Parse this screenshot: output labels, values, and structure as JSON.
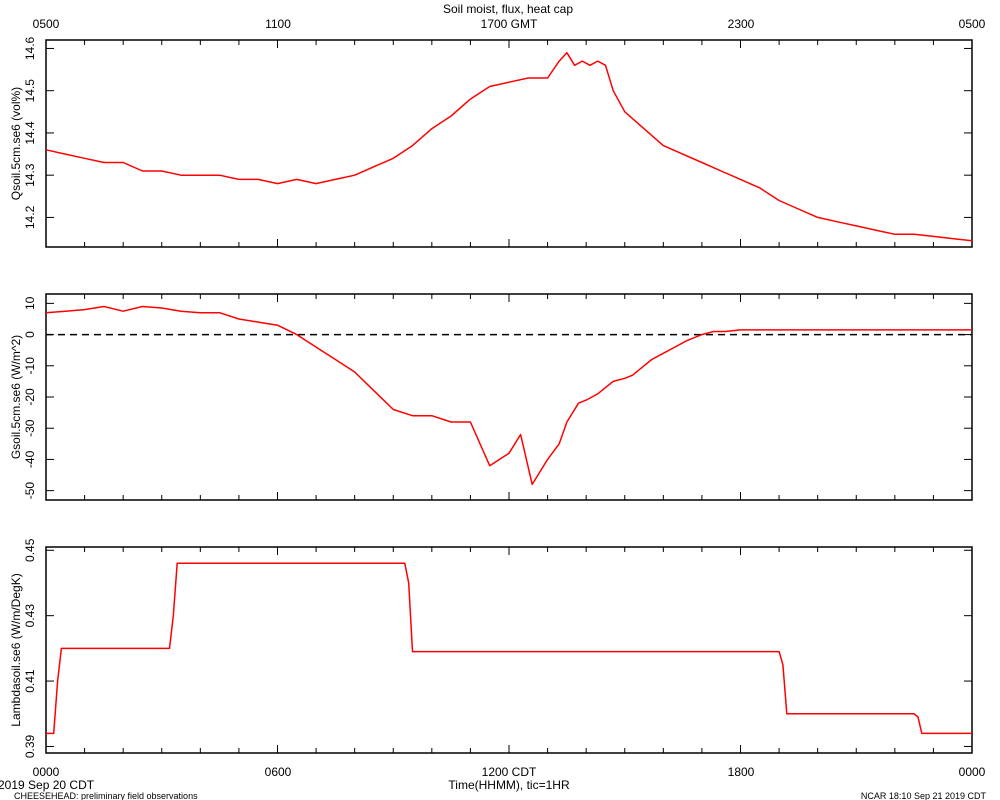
{
  "chart_data": {
    "title": "Soil moist, flux, heat cap",
    "top_ticks": [
      "0500",
      "1100",
      "1700 GMT",
      "2300",
      "0500"
    ],
    "bottom_ticks": [
      "0000",
      "0600",
      "1200 CDT",
      "1800",
      "0000"
    ],
    "xlabel": "Time(HHMM), tic=1HR",
    "date_label": "2019 Sep 20 CDT",
    "footer_left": "CHEESEHEAD: preliminary field observations",
    "footer_right": "NCAR 18:10 Sep 21 2019 CDT",
    "x_range_hours": [
      0,
      24
    ],
    "colors": {
      "series": "#ff0000",
      "axes": "#000000",
      "zero_line": "#000000"
    },
    "panels": [
      {
        "type": "line",
        "ylabel": "Qsoil.5cm.se6 (vol%)",
        "ylim": [
          14.13,
          14.62
        ],
        "yticks": [
          14.2,
          14.3,
          14.4,
          14.5,
          14.6
        ],
        "ytick_labels": [
          "14.2",
          "14.3",
          "14.4",
          "14.5",
          "14.6"
        ],
        "zero_line": false,
        "series": {
          "x": [
            0,
            0.5,
            1.0,
            1.5,
            2.0,
            2.5,
            3.0,
            3.5,
            4.0,
            4.5,
            5.0,
            5.5,
            6.0,
            6.5,
            7.0,
            7.5,
            8.0,
            8.5,
            9.0,
            9.5,
            10.0,
            10.5,
            11.0,
            11.5,
            12.0,
            12.5,
            13.0,
            13.3,
            13.5,
            13.7,
            13.9,
            14.1,
            14.3,
            14.5,
            14.7,
            15.0,
            15.5,
            16.0,
            16.5,
            17.0,
            17.5,
            18.0,
            18.5,
            19.0,
            19.5,
            20.0,
            20.5,
            21.0,
            21.5,
            22.0,
            22.5,
            23.0,
            23.5,
            24.0
          ],
          "values": [
            14.36,
            14.35,
            14.34,
            14.33,
            14.33,
            14.31,
            14.31,
            14.3,
            14.3,
            14.3,
            14.29,
            14.29,
            14.28,
            14.29,
            14.28,
            14.29,
            14.3,
            14.32,
            14.34,
            14.37,
            14.41,
            14.44,
            14.48,
            14.51,
            14.52,
            14.53,
            14.53,
            14.57,
            14.59,
            14.56,
            14.57,
            14.56,
            14.57,
            14.56,
            14.5,
            14.45,
            14.41,
            14.37,
            14.35,
            14.33,
            14.31,
            14.29,
            14.27,
            14.24,
            14.22,
            14.2,
            14.19,
            14.18,
            14.17,
            14.16,
            14.16,
            14.155,
            14.15,
            14.145
          ]
        }
      },
      {
        "type": "line",
        "ylabel": "Gsoil.5cm.se6 (W/m^2)",
        "ylim": [
          -53,
          13
        ],
        "yticks": [
          10,
          0,
          -10,
          -20,
          -30,
          -40,
          -50
        ],
        "ytick_labels": [
          "10",
          "0",
          "-10",
          "-20",
          "-30",
          "-40",
          "-50"
        ],
        "zero_line": true,
        "series": {
          "x": [
            0,
            0.5,
            1.0,
            1.5,
            2.0,
            2.5,
            3.0,
            3.5,
            4.0,
            4.5,
            5.0,
            5.5,
            6.0,
            6.5,
            7.0,
            7.5,
            8.0,
            8.5,
            9.0,
            9.5,
            10.0,
            10.5,
            11.0,
            11.5,
            12.0,
            12.3,
            12.6,
            13.0,
            13.3,
            13.5,
            13.8,
            14.0,
            14.3,
            14.5,
            14.7,
            15.0,
            15.2,
            15.5,
            15.7,
            16.0,
            16.3,
            16.6,
            17.0,
            17.3,
            17.6,
            18.0,
            18.5,
            19.0,
            19.5,
            20.0,
            20.5,
            21.0,
            21.5,
            22.0,
            22.5,
            23.0,
            23.5,
            24.0
          ],
          "values": [
            7,
            7.5,
            8,
            9,
            7.5,
            9,
            8.5,
            7.5,
            7,
            7,
            5,
            4,
            3,
            0,
            -4,
            -8,
            -12,
            -18,
            -24,
            -26,
            -26,
            -28,
            -28,
            -42,
            -38,
            -32,
            -48,
            -40,
            -35,
            -28,
            -22,
            -21,
            -19,
            -17,
            -15,
            -14,
            -13,
            -10,
            -8,
            -6,
            -4,
            -2,
            0,
            1,
            1,
            1.5,
            1.5,
            1.5,
            1.5,
            1.5,
            1.5,
            1.5,
            1.5,
            1.5,
            1.5,
            1.5,
            1.5,
            1.5
          ]
        }
      },
      {
        "type": "line",
        "ylabel": "Lambdasoil.se6 (W/m/DegK)",
        "ylim": [
          0.388,
          0.451
        ],
        "yticks": [
          0.39,
          0.41,
          0.43,
          0.45
        ],
        "ytick_labels": [
          "0.39",
          "0.41",
          "0.43",
          "0.45"
        ],
        "zero_line": false,
        "series": {
          "x": [
            0,
            0.2,
            0.3,
            0.4,
            3.2,
            3.3,
            3.4,
            9.3,
            9.4,
            9.5,
            19.0,
            19.1,
            19.2,
            22.5,
            22.6,
            22.7,
            24.0
          ],
          "values": [
            0.394,
            0.394,
            0.41,
            0.42,
            0.42,
            0.43,
            0.446,
            0.446,
            0.44,
            0.419,
            0.419,
            0.415,
            0.4,
            0.4,
            0.399,
            0.394,
            0.394
          ]
        }
      }
    ]
  }
}
